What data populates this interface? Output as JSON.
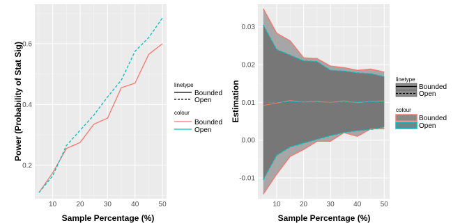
{
  "chart_data": [
    {
      "type": "line",
      "title": "",
      "xlabel": "Sample Percentage (%)",
      "ylabel": "Power (Probability of Stat Sig)",
      "xlim": [
        3.5,
        51.5
      ],
      "ylim": [
        0.09,
        0.73
      ],
      "x_ticks": [
        10,
        20,
        30,
        40,
        50
      ],
      "y_ticks": [
        0.2,
        0.4,
        0.6
      ],
      "grid": true,
      "legend_position": "right",
      "x": [
        5,
        10,
        15,
        20,
        25,
        30,
        35,
        40,
        45,
        50
      ],
      "series": [
        {
          "name": "Bounded",
          "linetype": "solid",
          "color": "#F8766D",
          "values": [
            0.11,
            0.175,
            0.255,
            0.275,
            0.335,
            0.355,
            0.455,
            0.47,
            0.565,
            0.6
          ]
        },
        {
          "name": "Open",
          "linetype": "dashed",
          "color": "#00BFC4",
          "values": [
            0.11,
            0.165,
            0.265,
            0.315,
            0.365,
            0.425,
            0.48,
            0.575,
            0.62,
            0.685
          ]
        }
      ],
      "legend": {
        "linetype_title": "linetype",
        "linetype_items": [
          "Bounded",
          "Open"
        ],
        "colour_title": "colour",
        "colour_items": [
          "Bounded",
          "Open"
        ]
      }
    },
    {
      "type": "area",
      "title": "",
      "xlabel": "Sample Percentage (%)",
      "ylabel": "Estimation",
      "xlim": [
        3.0,
        52.0
      ],
      "ylim": [
        -0.0155,
        0.036
      ],
      "x_ticks": [
        10,
        20,
        30,
        40,
        50
      ],
      "y_ticks": [
        -0.01,
        0.0,
        0.01,
        0.02,
        0.03
      ],
      "y_tick_labels": [
        "-0.01",
        "0.00",
        "0.01",
        "0.02",
        "0.03"
      ],
      "grid": true,
      "legend_position": "right",
      "x": [
        5,
        10,
        15,
        20,
        25,
        30,
        35,
        40,
        45,
        50
      ],
      "series": [
        {
          "name": "Bounded",
          "linetype": "solid",
          "color": "#F8766D",
          "mid": [
            0.0092,
            0.0098,
            0.0105,
            0.0101,
            0.0103,
            0.01,
            0.0104,
            0.0099,
            0.0103,
            0.0104
          ],
          "upper": [
            0.0348,
            0.0283,
            0.0263,
            0.0218,
            0.0216,
            0.0196,
            0.0192,
            0.0185,
            0.0188,
            0.018
          ],
          "lower": [
            -0.0143,
            -0.009,
            -0.0043,
            -0.0025,
            -0.0003,
            -0.0003,
            0.002,
            0.001,
            0.003,
            0.003
          ]
        },
        {
          "name": "Open",
          "linetype": "dashed",
          "color": "#00BFC4",
          "mid": [
            0.01,
            0.01,
            0.0102,
            0.0101,
            0.0101,
            0.01,
            0.0101,
            0.0101,
            0.0102,
            0.0102
          ],
          "upper": [
            0.0305,
            0.024,
            0.0225,
            0.021,
            0.0208,
            0.0185,
            0.0183,
            0.0178,
            0.0176,
            0.0168
          ],
          "lower": [
            -0.0105,
            -0.004,
            -0.0018,
            -0.0008,
            0.0002,
            0.0012,
            0.002,
            0.0025,
            0.0028,
            0.0035
          ]
        }
      ],
      "legend": {
        "linetype_title": "linetype",
        "linetype_items": [
          "Bounded",
          "Open"
        ],
        "colour_title": "colour",
        "colour_items": [
          "Bounded",
          "Open"
        ]
      }
    }
  ]
}
